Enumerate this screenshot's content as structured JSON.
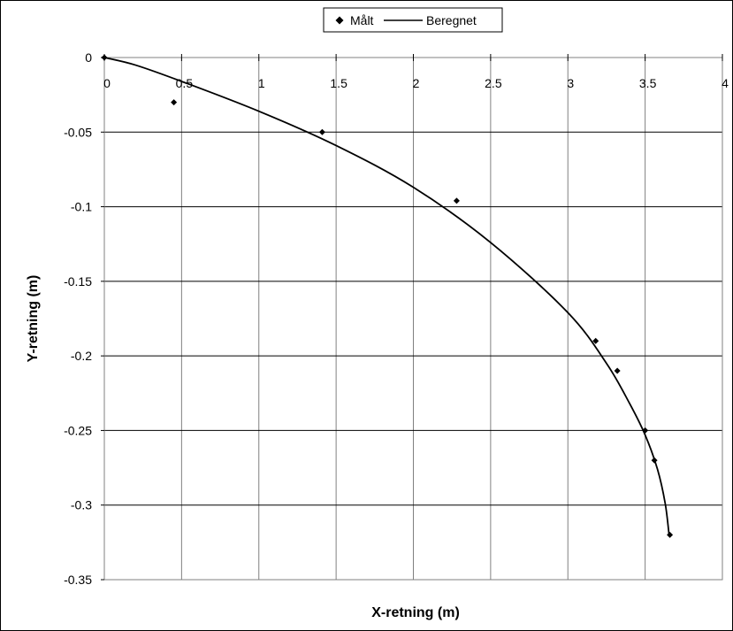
{
  "chart_data": {
    "type": "scatter",
    "title": "",
    "xlabel": "X-retning (m)",
    "ylabel": "Y-retning (m)",
    "xlim": [
      0,
      4
    ],
    "ylim": [
      -0.35,
      0
    ],
    "x_ticks": [
      "0",
      "0.5",
      "1",
      "1.5",
      "2",
      "2.5",
      "3",
      "3.5",
      "4"
    ],
    "y_ticks": [
      "0",
      "-0.05",
      "-0.1",
      "-0.15",
      "-0.2",
      "-0.25",
      "-0.3",
      "-0.35"
    ],
    "grid": true,
    "legend_position": "top-center",
    "series": [
      {
        "name": "Målt",
        "kind": "markers",
        "marker": "diamond",
        "color": "#000000",
        "x": [
          0,
          0.45,
          1.41,
          2.28,
          3.18,
          3.32,
          3.5,
          3.56,
          3.66
        ],
        "y": [
          0,
          -0.03,
          -0.05,
          -0.096,
          -0.19,
          -0.21,
          -0.25,
          -0.27,
          -0.32
        ]
      },
      {
        "name": "Beregnet",
        "kind": "line",
        "color": "#000000",
        "x": [
          0,
          0.2,
          0.5,
          1.0,
          1.5,
          2.0,
          2.5,
          3.0,
          3.25,
          3.4,
          3.5,
          3.58,
          3.63,
          3.655
        ],
        "y": [
          0,
          -0.005,
          -0.016,
          -0.036,
          -0.059,
          -0.087,
          -0.124,
          -0.171,
          -0.205,
          -0.232,
          -0.253,
          -0.276,
          -0.299,
          -0.32
        ]
      }
    ]
  }
}
